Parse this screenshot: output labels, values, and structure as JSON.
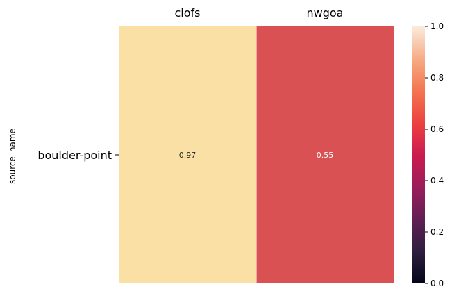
{
  "chart_data": {
    "type": "heatmap",
    "title": "",
    "xlabel": "",
    "ylabel": "source_name",
    "x_categories": [
      "ciofs",
      "nwgoa"
    ],
    "y_categories": [
      "boulder-point"
    ],
    "values": [
      [
        0.97,
        0.55
      ]
    ],
    "annotations": [
      [
        "0.97",
        "0.55"
      ]
    ],
    "x_ticks_position": "top",
    "colormap": "rocket",
    "colorbar": {
      "range": [
        0.0,
        1.0
      ],
      "ticks": [
        "0.0",
        "0.2",
        "0.4",
        "0.6",
        "0.8",
        "1.0"
      ],
      "tick_values": [
        0.0,
        0.2,
        0.4,
        0.6,
        0.8,
        1.0
      ]
    },
    "colors": {
      "cell_ciofs": "#FAE0A5",
      "cell_nwgoa": "#D95152",
      "cell_divider": "#FFFFFF"
    }
  }
}
